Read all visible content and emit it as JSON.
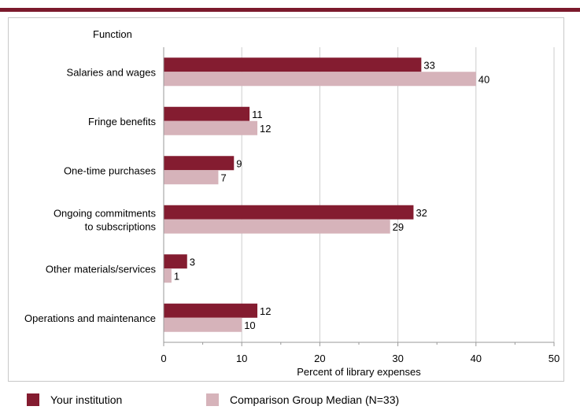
{
  "chart_data": {
    "type": "bar",
    "orientation": "horizontal",
    "category_axis_title": "Function",
    "categories": [
      [
        "Salaries and wages"
      ],
      [
        "Fringe benefits"
      ],
      [
        "One-time purchases"
      ],
      [
        "Ongoing commitments",
        "to subscriptions"
      ],
      [
        "Other materials/services"
      ],
      [
        "Operations and maintenance"
      ]
    ],
    "series": [
      {
        "name": "Your institution",
        "color": "#841c30",
        "values": [
          33,
          11,
          9,
          32,
          3,
          12
        ]
      },
      {
        "name": "Comparison Group Median (N=33)",
        "color": "#d6b3ba",
        "values": [
          40,
          12,
          7,
          29,
          1,
          10
        ]
      }
    ],
    "xlabel": "Percent of library expenses",
    "xlim": [
      0,
      50
    ],
    "xticks": [
      0,
      10,
      20,
      30,
      40,
      50
    ],
    "grid": true,
    "legend_position": "bottom"
  }
}
